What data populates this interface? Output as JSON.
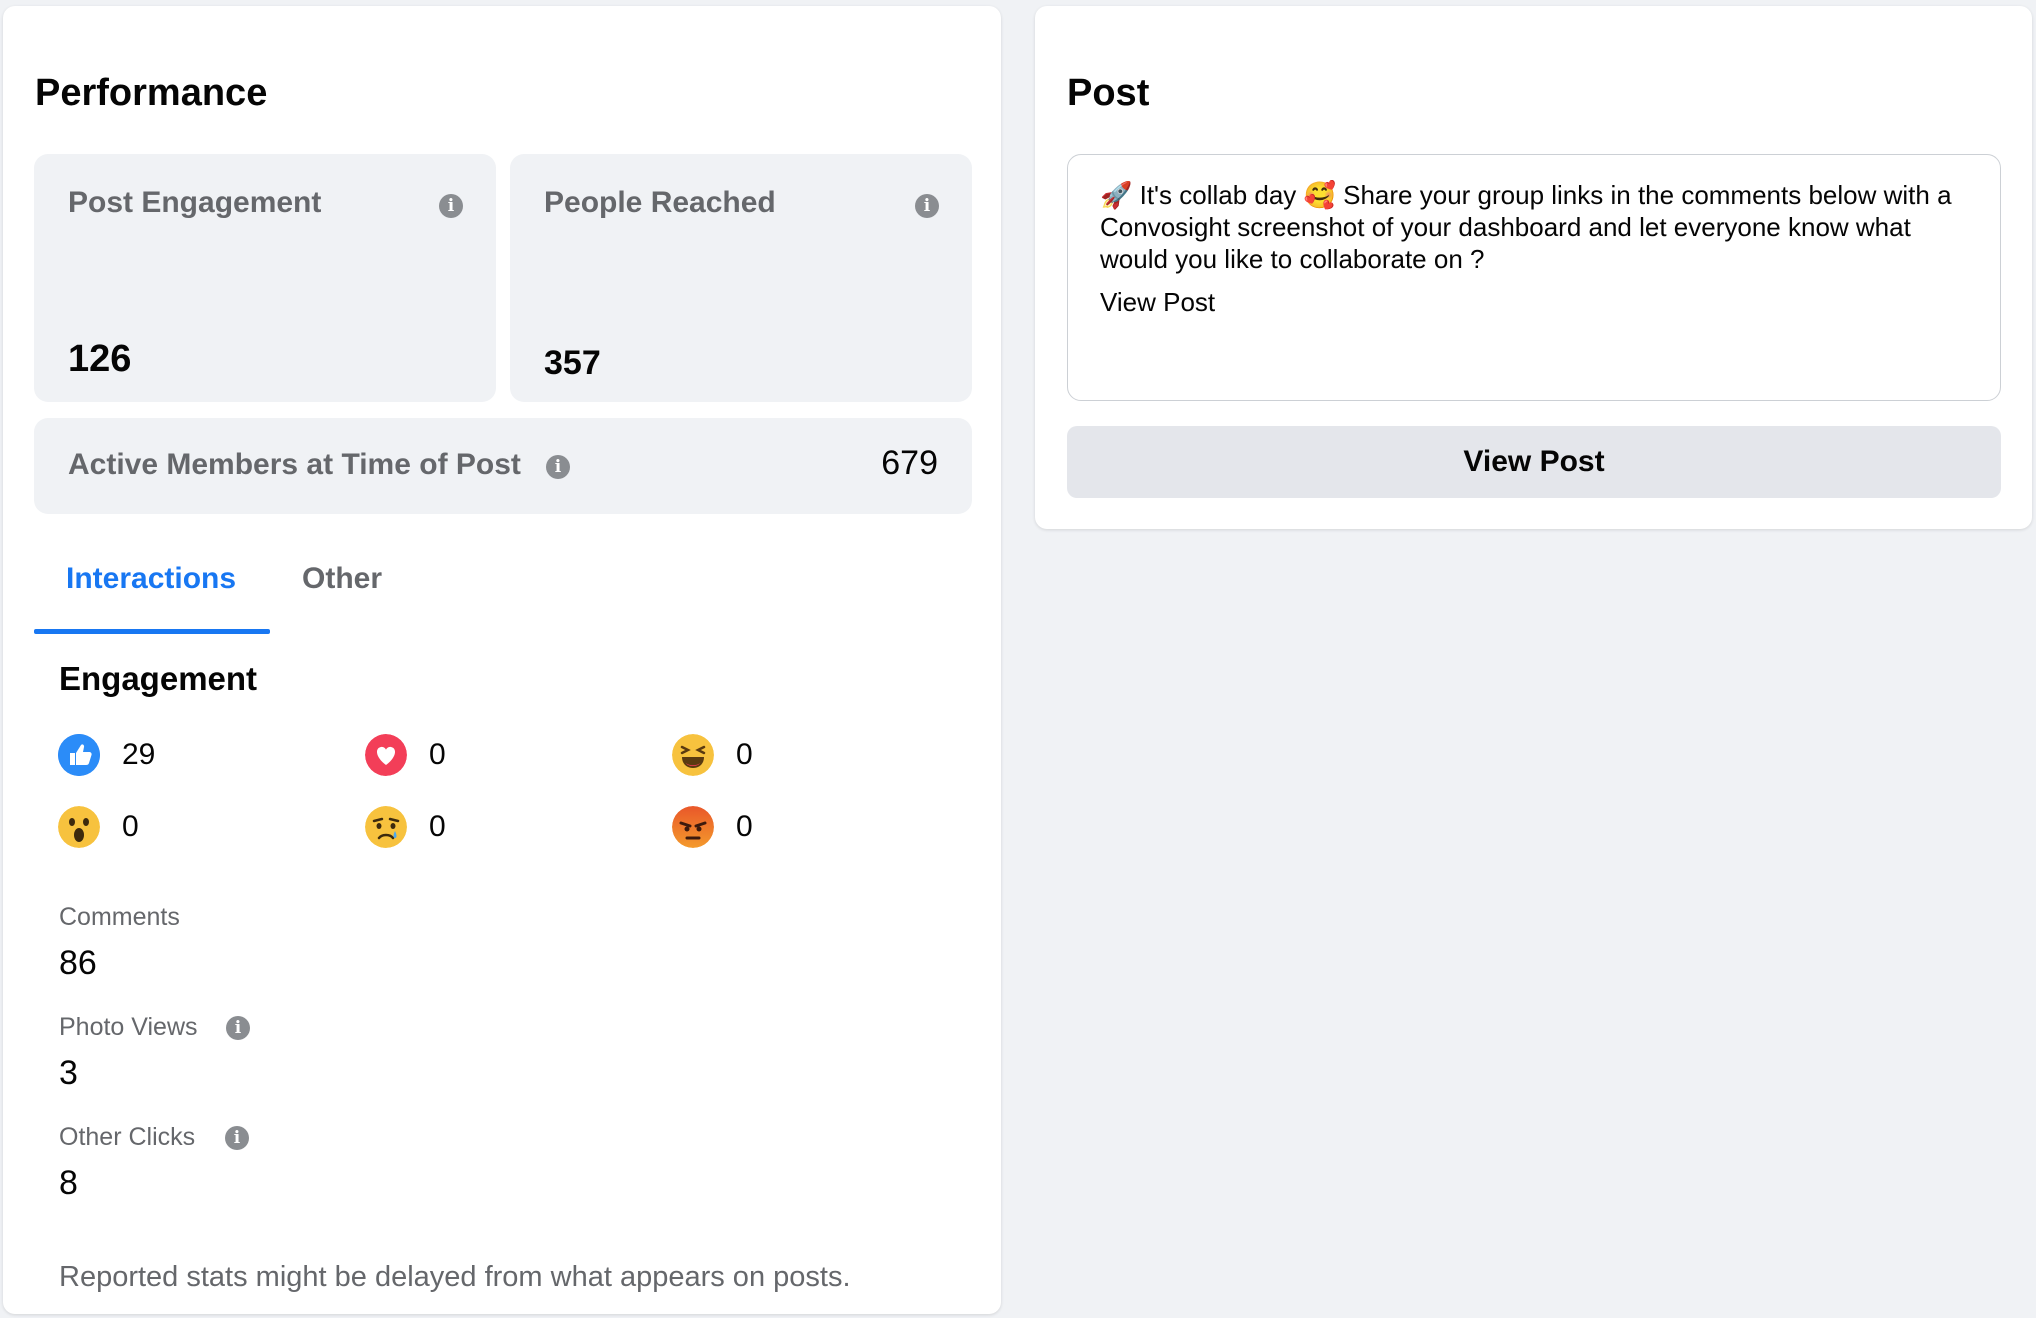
{
  "performance": {
    "title": "Performance",
    "post_engagement": {
      "label": "Post Engagement",
      "value": "126"
    },
    "people_reached": {
      "label": "People Reached",
      "value": "357"
    },
    "active_members": {
      "label": "Active Members at Time of Post",
      "value": "679"
    },
    "tabs": [
      {
        "label": "Interactions",
        "active": true
      },
      {
        "label": "Other",
        "active": false
      }
    ],
    "engagement": {
      "title": "Engagement",
      "reactions": [
        {
          "icon": "like-icon",
          "count": "29"
        },
        {
          "icon": "love-icon",
          "count": "0"
        },
        {
          "icon": "haha-icon",
          "count": "0"
        },
        {
          "icon": "wow-icon",
          "count": "0"
        },
        {
          "icon": "sad-icon",
          "count": "0"
        },
        {
          "icon": "angry-icon",
          "count": "0"
        }
      ]
    },
    "metrics": [
      {
        "label": "Comments",
        "value": "86"
      },
      {
        "label": "Photo Views",
        "value": "3"
      },
      {
        "label": "Other Clicks",
        "value": "8"
      }
    ],
    "footnote": "Reported stats might be delayed from what appears on posts."
  },
  "post": {
    "title": "Post",
    "text": "🚀 It's collab day 🥰 Share your group links in the comments below with a Convosight screenshot of your dashboard and let everyone know what would you like to collaborate on ?",
    "link_text": "View Post",
    "button_label": "View Post"
  },
  "colors": {
    "accent": "#1877f2",
    "background": "#f0f2f5",
    "secondary_text": "#65676b"
  }
}
